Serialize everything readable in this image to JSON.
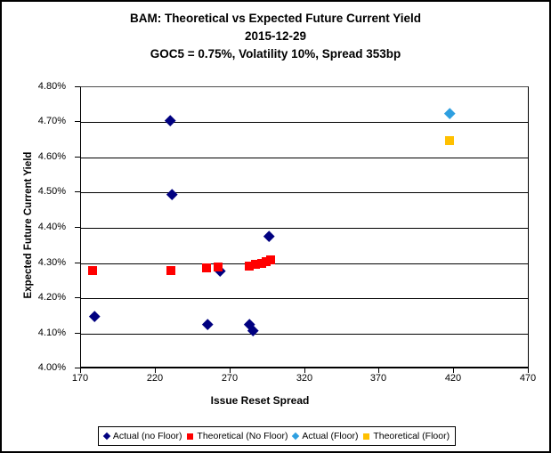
{
  "window": {
    "background": "#ffffff",
    "border_color": "#000000"
  },
  "title": {
    "line1": "BAM: Theoretical vs Expected Future Current Yield",
    "line2": "2015-12-29",
    "line3": "GOC5 = 0.75%, Volatility 10%, Spread 353bp"
  },
  "chart_data": {
    "type": "scatter",
    "title": "BAM: Theoretical vs Expected Future Current Yield",
    "subtitle_date": "2015-12-29",
    "subtitle_params": "GOC5 = 0.75%, Volatility 10%, Spread 353bp",
    "xlabel": "Issue Reset Spread",
    "ylabel": "Expected Future Current Yield",
    "xlim": [
      170,
      470
    ],
    "ylim": [
      4.0,
      4.8
    ],
    "xticks": [
      170,
      220,
      270,
      320,
      370,
      420,
      470
    ],
    "xtick_labels": [
      "170",
      "220",
      "270",
      "320",
      "370",
      "420",
      "470"
    ],
    "yticks": [
      4.0,
      4.1,
      4.2,
      4.3,
      4.4,
      4.5,
      4.6,
      4.7,
      4.8
    ],
    "ytick_labels": [
      "4.00%",
      "4.10%",
      "4.20%",
      "4.30%",
      "4.40%",
      "4.50%",
      "4.60%",
      "4.70%",
      "4.80%"
    ],
    "grid": true,
    "legend_position": "bottom",
    "series": [
      {
        "name": "Actual (no Floor)",
        "marker": "diamond",
        "color": "#000080",
        "points": [
          [
            179,
            4.15
          ],
          [
            230,
            4.706
          ],
          [
            231,
            4.496
          ],
          [
            255,
            4.125
          ],
          [
            263,
            4.278
          ],
          [
            283,
            4.126
          ],
          [
            285,
            4.109
          ],
          [
            296,
            4.376
          ]
        ]
      },
      {
        "name": "Theoretical (No Floor)",
        "marker": "square",
        "color": "#FF0000",
        "points": [
          [
            178,
            4.279
          ],
          [
            230,
            4.279
          ],
          [
            254,
            4.286
          ],
          [
            262,
            4.289
          ],
          [
            283,
            4.292
          ],
          [
            287,
            4.296
          ],
          [
            291,
            4.299
          ],
          [
            294,
            4.303
          ],
          [
            297,
            4.308
          ]
        ]
      },
      {
        "name": "Actual (Floor)",
        "marker": "diamond",
        "color": "#2E9FE0",
        "points": [
          [
            417,
            4.725
          ]
        ]
      },
      {
        "name": "Theoretical (Floor)",
        "marker": "square",
        "color": "#FFC000",
        "points": [
          [
            417,
            4.648
          ]
        ]
      }
    ]
  }
}
